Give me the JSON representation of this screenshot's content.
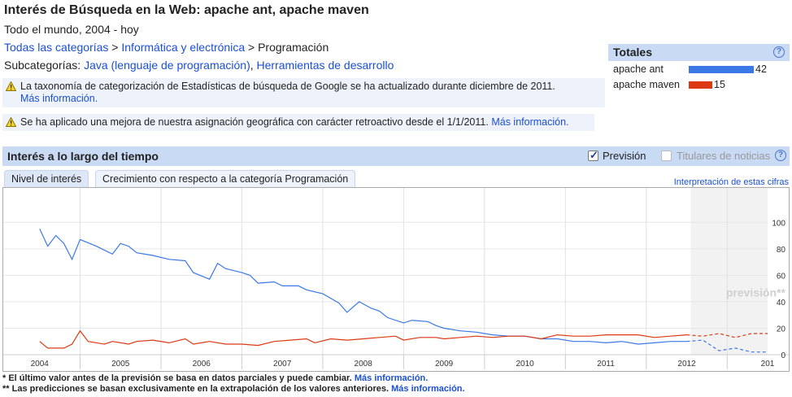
{
  "header": {
    "title": "Interés de Búsqueda en la Web: apache ant, apache maven",
    "subtitle": "Todo el mundo, 2004 - hoy"
  },
  "breadcrumb": {
    "item1": "Todas las categorías",
    "sep1": " > ",
    "item2": "Informática y electrónica",
    "sep2": " > ",
    "current": "Programación"
  },
  "subcategories": {
    "label": "Subcategorías: ",
    "link1": "Java (lenguaje de programación)",
    "sep": ", ",
    "link2": "Herramientas de desarrollo"
  },
  "notices": {
    "n1_text": "La taxonomía de categorización de Estadísticas de búsqueda de Google se ha actualizado durante diciembre de 2011.",
    "n1_link": "Más información.",
    "n2_text": "Se ha aplicado una mejora de nuestra asignación geográfica con carácter retroactivo desde el 1/1/2011.",
    "n2_link": "Más información."
  },
  "totals": {
    "title": "Totales",
    "help": "?",
    "rows": [
      {
        "label": "apache ant",
        "value": "42",
        "color": "#3b78e7",
        "fraction": 0.42
      },
      {
        "label": "apache maven",
        "value": "15",
        "color": "#dc3912",
        "fraction": 0.15
      }
    ]
  },
  "section": {
    "title": "Interés a lo largo del tiempo",
    "forecast_label": "Previsión",
    "headlines_label": "Titulares de noticias",
    "help": "?"
  },
  "tabs": {
    "tab1": "Nivel de interés",
    "tab2": "Crecimiento con respecto a la categoría Programación",
    "interp_link": "Interpretación de estas cifras"
  },
  "footnotes": {
    "f1_text": "* El último valor antes de la previsión se basa en datos parciales y puede cambiar.",
    "f1_link": "Más información.",
    "f2_text": "** Las predicciones se basan exclusivamente en la extrapolación de los valores anteriores.",
    "f2_link": "Más información."
  },
  "chart_data": {
    "type": "line",
    "xticks": [
      "2004",
      "2005",
      "2006",
      "2007",
      "2008",
      "2009",
      "2010",
      "2011",
      "2012",
      "201"
    ],
    "yticks": [
      "100",
      "80",
      "60",
      "40",
      "20",
      "0"
    ],
    "ylim": [
      0,
      110
    ],
    "forecast_label": "previsión**",
    "series": [
      {
        "name": "apache ant",
        "color": "#3b78e7",
        "points": [
          [
            2004.0,
            95
          ],
          [
            2004.1,
            82
          ],
          [
            2004.2,
            90
          ],
          [
            2004.3,
            84
          ],
          [
            2004.4,
            72
          ],
          [
            2004.5,
            87
          ],
          [
            2004.7,
            82
          ],
          [
            2004.9,
            76
          ],
          [
            2005.0,
            84
          ],
          [
            2005.1,
            82
          ],
          [
            2005.2,
            77
          ],
          [
            2005.4,
            75
          ],
          [
            2005.6,
            72
          ],
          [
            2005.8,
            71
          ],
          [
            2005.9,
            62
          ],
          [
            2006.1,
            57
          ],
          [
            2006.2,
            69
          ],
          [
            2006.3,
            65
          ],
          [
            2006.5,
            62
          ],
          [
            2006.6,
            60
          ],
          [
            2006.7,
            54
          ],
          [
            2006.9,
            55
          ],
          [
            2007.0,
            52
          ],
          [
            2007.2,
            52
          ],
          [
            2007.3,
            49
          ],
          [
            2007.5,
            46
          ],
          [
            2007.7,
            39
          ],
          [
            2007.8,
            32
          ],
          [
            2007.95,
            40
          ],
          [
            2008.1,
            35
          ],
          [
            2008.2,
            33
          ],
          [
            2008.3,
            28
          ],
          [
            2008.5,
            24
          ],
          [
            2008.6,
            26
          ],
          [
            2008.8,
            25
          ],
          [
            2008.9,
            22
          ],
          [
            2009.0,
            20
          ],
          [
            2009.2,
            18
          ],
          [
            2009.4,
            17
          ],
          [
            2009.6,
            15
          ],
          [
            2009.8,
            14
          ],
          [
            2010.0,
            14
          ],
          [
            2010.2,
            12
          ],
          [
            2010.4,
            12
          ],
          [
            2010.6,
            10
          ],
          [
            2010.8,
            10
          ],
          [
            2011.0,
            9
          ],
          [
            2011.2,
            10
          ],
          [
            2011.4,
            8
          ],
          [
            2011.6,
            9
          ],
          [
            2011.8,
            10
          ],
          [
            2012.0,
            10
          ]
        ],
        "forecast": [
          [
            2012.0,
            10
          ],
          [
            2012.2,
            11
          ],
          [
            2012.4,
            3
          ],
          [
            2012.6,
            5
          ],
          [
            2012.8,
            2
          ],
          [
            2013.0,
            2
          ]
        ]
      },
      {
        "name": "apache maven",
        "color": "#dc3912",
        "points": [
          [
            2004.0,
            10
          ],
          [
            2004.1,
            5
          ],
          [
            2004.3,
            5
          ],
          [
            2004.4,
            8
          ],
          [
            2004.5,
            18
          ],
          [
            2004.6,
            10
          ],
          [
            2004.8,
            8
          ],
          [
            2004.9,
            10
          ],
          [
            2005.1,
            8
          ],
          [
            2005.2,
            10
          ],
          [
            2005.4,
            11
          ],
          [
            2005.6,
            9
          ],
          [
            2005.8,
            12
          ],
          [
            2005.9,
            8
          ],
          [
            2006.1,
            10
          ],
          [
            2006.3,
            8
          ],
          [
            2006.5,
            8
          ],
          [
            2006.7,
            7
          ],
          [
            2006.9,
            10
          ],
          [
            2007.1,
            11
          ],
          [
            2007.3,
            12
          ],
          [
            2007.4,
            9
          ],
          [
            2007.6,
            12
          ],
          [
            2007.8,
            11
          ],
          [
            2008.0,
            12
          ],
          [
            2008.2,
            13
          ],
          [
            2008.4,
            14
          ],
          [
            2008.5,
            11
          ],
          [
            2008.7,
            13
          ],
          [
            2008.9,
            13
          ],
          [
            2009.0,
            12
          ],
          [
            2009.2,
            13
          ],
          [
            2009.4,
            14
          ],
          [
            2009.6,
            13
          ],
          [
            2009.8,
            14
          ],
          [
            2010.0,
            14
          ],
          [
            2010.2,
            12
          ],
          [
            2010.4,
            15
          ],
          [
            2010.6,
            14
          ],
          [
            2010.8,
            14
          ],
          [
            2011.0,
            15
          ],
          [
            2011.2,
            15
          ],
          [
            2011.4,
            15
          ],
          [
            2011.6,
            13
          ],
          [
            2011.8,
            14
          ],
          [
            2012.0,
            15
          ]
        ],
        "forecast": [
          [
            2012.0,
            15
          ],
          [
            2012.2,
            14
          ],
          [
            2012.4,
            16
          ],
          [
            2012.6,
            13
          ],
          [
            2012.8,
            16
          ],
          [
            2013.0,
            16
          ]
        ]
      }
    ]
  }
}
